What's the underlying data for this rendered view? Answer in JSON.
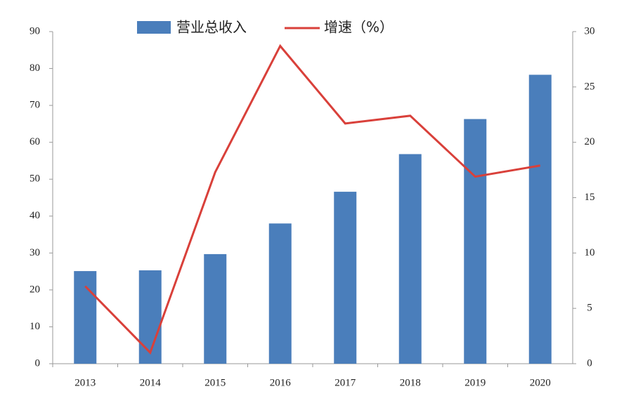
{
  "chart_data": {
    "type": "bar-line",
    "categories": [
      "2013",
      "2014",
      "2015",
      "2016",
      "2017",
      "2018",
      "2019",
      "2020"
    ],
    "series": [
      {
        "name": "营业总收入",
        "type": "bar",
        "color": "#4a7ebb",
        "values": [
          25.1,
          25.3,
          29.7,
          38.0,
          46.6,
          56.8,
          66.3,
          78.3
        ]
      },
      {
        "name": "增速（%）",
        "type": "line",
        "axis": "y2",
        "color": "#d9403a",
        "values": [
          7.0,
          1.0,
          17.3,
          28.7,
          21.7,
          22.4,
          16.9,
          17.9
        ]
      }
    ],
    "ylim": [
      0,
      90
    ],
    "yticks": [
      0,
      10,
      20,
      30,
      40,
      50,
      60,
      70,
      80,
      90
    ],
    "y2lim": [
      0,
      30
    ],
    "y2ticks": [
      0,
      5,
      10,
      15,
      20,
      25,
      30
    ],
    "grid": false
  }
}
